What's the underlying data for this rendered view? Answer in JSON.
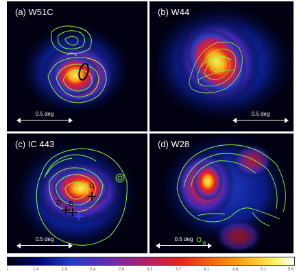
{
  "panels": [
    {
      "label": "(a) W51C",
      "scale": "0.5 deg"
    },
    {
      "label": "(b) W44",
      "scale": "0.5 deg"
    },
    {
      "label": "(c) IC 443",
      "scale": "0.5 deg",
      "markers": [
        {
          "text": "G"
        },
        {
          "text": "D"
        },
        {
          "text": "B"
        },
        {
          "text": "PWN"
        }
      ]
    },
    {
      "label": "(d) W28",
      "scale": "0.5 deg"
    }
  ],
  "colorbar": {
    "ticks": [
      "1",
      "1.4",
      "1.9",
      "2.4",
      "2.8",
      "3.3",
      "3.7",
      "4.1",
      "4.6",
      "5.1",
      "5.6"
    ],
    "colors": [
      "#000010",
      "#00006a",
      "#1f3cc8",
      "#6a2ab0",
      "#b0206a",
      "#e8241c",
      "#f46a10",
      "#f8b018",
      "#fff060",
      "#ffffff"
    ]
  },
  "colors": {
    "contour": "#8cff3c",
    "divider": "#ffffff",
    "marker_black": "#000000",
    "marker_blue": "#3050ff"
  }
}
